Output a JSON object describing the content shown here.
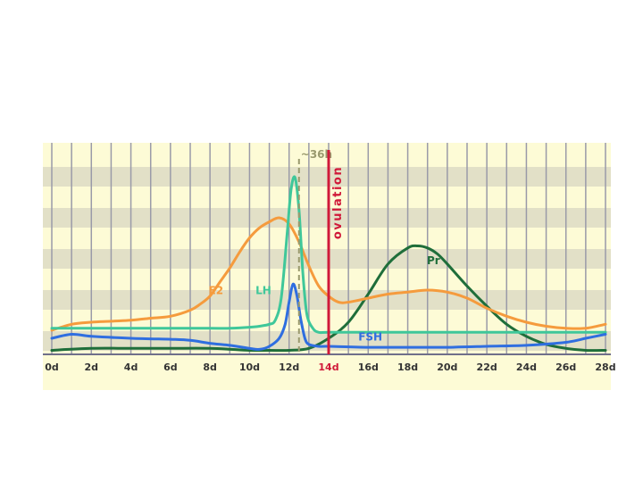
{
  "chart_data": {
    "type": "line",
    "xlim": [
      0,
      28
    ],
    "ylim": [
      0,
      100
    ],
    "grid": true,
    "x_ticks": [
      "0d",
      "2d",
      "4d",
      "6d",
      "8d",
      "10d",
      "12d",
      "14d",
      "16d",
      "18d",
      "20d",
      "22d",
      "24d",
      "26d",
      "28d"
    ],
    "highlight_tick": "14d",
    "series": [
      {
        "name": "E2",
        "color": "#f59b3d",
        "x": [
          0,
          1,
          2,
          3,
          4,
          5,
          6,
          7,
          7.5,
          8,
          8.5,
          9,
          9.5,
          10,
          10.5,
          11,
          11.5,
          12,
          12.5,
          13,
          13.5,
          14,
          14.5,
          15,
          16,
          17,
          18,
          19,
          20,
          21,
          22,
          23,
          24,
          25,
          26,
          27,
          28
        ],
        "y": [
          12,
          15,
          16,
          16.5,
          17,
          18,
          19,
          22,
          25,
          29,
          36,
          43,
          51,
          58,
          63,
          66,
          68,
          65,
          56,
          44,
          34,
          29,
          26,
          26,
          28,
          30,
          31,
          32,
          31,
          28,
          23,
          19,
          16,
          14,
          13,
          13,
          15
        ]
      },
      {
        "name": "LH",
        "color": "#3fc79a",
        "x": [
          0,
          2,
          4,
          6,
          8,
          9,
          10,
          10.5,
          11,
          11.3,
          11.6,
          11.9,
          12.1,
          12.3,
          12.5,
          12.7,
          12.9,
          13.2,
          13.5,
          14,
          16,
          20,
          24,
          28
        ],
        "y": [
          13,
          13,
          13,
          13,
          13,
          13,
          13.5,
          14,
          15,
          17,
          28,
          60,
          82,
          88,
          72,
          40,
          20,
          13,
          11,
          11,
          11,
          11,
          11,
          11
        ]
      },
      {
        "name": "FSH",
        "color": "#2f6ee0",
        "x": [
          0,
          1,
          2,
          4,
          6,
          7,
          8,
          9,
          10,
          10.5,
          11,
          11.5,
          11.8,
          12,
          12.2,
          12.4,
          12.6,
          12.8,
          13,
          13.5,
          14,
          16,
          18,
          20,
          22,
          24,
          26,
          27,
          28
        ],
        "y": [
          8,
          10,
          9,
          8,
          7.5,
          7,
          5.5,
          4.5,
          3,
          2.5,
          4,
          8,
          15,
          26,
          35,
          29,
          17,
          8,
          5,
          4,
          4,
          3.5,
          3.5,
          3.5,
          4,
          4.5,
          6,
          8,
          10
        ]
      },
      {
        "name": "Pr",
        "color": "#1f6e3a",
        "x": [
          0,
          2,
          4,
          6,
          8,
          10,
          11,
          12,
          13,
          14,
          15,
          16,
          17,
          18,
          18.5,
          19,
          19.5,
          20,
          21,
          22,
          23,
          24,
          25,
          26,
          27,
          28
        ],
        "y": [
          2,
          3,
          3,
          3,
          3,
          2,
          2,
          2,
          3,
          8,
          16,
          30,
          45,
          53,
          54,
          53,
          50,
          45,
          34,
          24,
          15,
          9,
          5,
          3,
          2,
          2
        ]
      }
    ],
    "annotations": [
      {
        "text": "~36h",
        "x": 12.5,
        "style": "dashed",
        "color": "#9a9a6e"
      },
      {
        "text": "ovulation",
        "x": 14,
        "style": "solid",
        "color": "#d01a3a"
      }
    ]
  }
}
